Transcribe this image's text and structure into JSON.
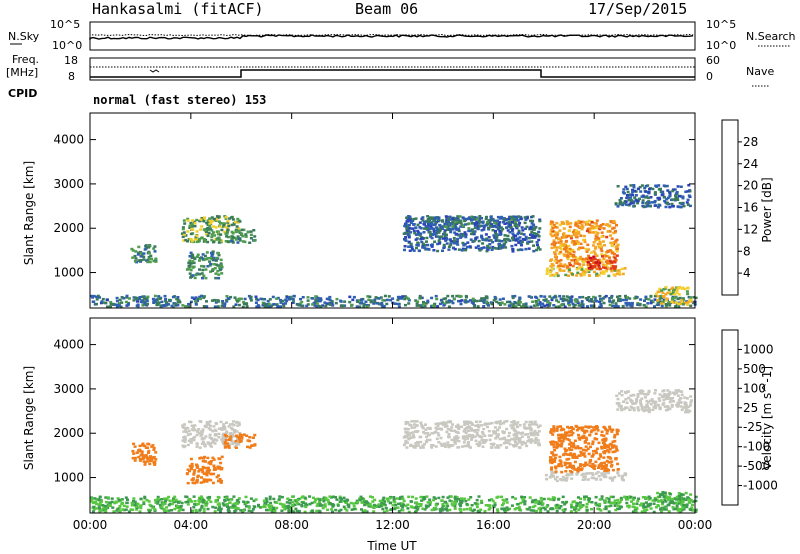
{
  "header": {
    "station": "Hankasalmi (fitACF)",
    "beam": "Beam 06",
    "date": "17/Sep/2015"
  },
  "top_panel": {
    "left_label": "N.Sky",
    "left_ticks": [
      "10^5",
      "10^0"
    ],
    "right_label": "N.Search",
    "right_ticks": [
      "10^5",
      "10^0"
    ]
  },
  "freq_panel": {
    "left_label_1": "Freq.",
    "left_label_2": "[MHz]",
    "left_ticks": [
      "18",
      "8"
    ],
    "right_label": "Nave",
    "right_ticks": [
      "60",
      "0"
    ],
    "cpid_label": "CPID"
  },
  "cpid_text": "normal (fast stereo) 153",
  "colors": {
    "power_scale": [
      "#1a1aff",
      "#2a44b8",
      "#2e5fb0",
      "#3a7a5a",
      "#4f9c4f",
      "#f2cf30",
      "#f5a623",
      "#ef7a1a",
      "#e23c1a",
      "#c8101a"
    ],
    "velocity_scale": [
      "#e01414",
      "#ee4a16",
      "#f07c1a",
      "#f5a623",
      "#c8c8c0",
      "#c8c8c0",
      "#58c840",
      "#3c9a50",
      "#3060a8",
      "#2030d0"
    ]
  },
  "chart_data": [
    {
      "type": "heatmap",
      "name": "power",
      "ylabel": "Slant Range [km]",
      "yticks": [
        "1000",
        "2000",
        "3000",
        "4000"
      ],
      "ylim": [
        200,
        4600
      ],
      "xlim_hours": [
        0,
        24
      ],
      "colorbar_label": "Power [dB]",
      "colorbar_ticks": [
        "4",
        "8",
        "12",
        "16",
        "20",
        "24",
        "28"
      ],
      "colorbar_range": [
        0,
        32
      ],
      "regions": [
        {
          "t0": 0.0,
          "t1": 24.0,
          "r0": 250,
          "r1": 500,
          "v": 10
        },
        {
          "t0": 1.6,
          "t1": 2.6,
          "r0": 1250,
          "r1": 1650,
          "v": 12
        },
        {
          "t0": 3.6,
          "t1": 5.9,
          "r0": 1700,
          "r1": 2300,
          "v": 14
        },
        {
          "t0": 3.8,
          "t1": 5.2,
          "r0": 900,
          "r1": 1500,
          "v": 12
        },
        {
          "t0": 5.3,
          "t1": 6.5,
          "r0": 1700,
          "r1": 2000,
          "v": 12
        },
        {
          "t0": 12.4,
          "t1": 17.8,
          "r0": 1500,
          "r1": 2300,
          "v": 8
        },
        {
          "t0": 13.2,
          "t1": 16.9,
          "r0": 2000,
          "r1": 2300,
          "v": 10
        },
        {
          "t0": 18.0,
          "t1": 21.2,
          "r0": 950,
          "r1": 1150,
          "v": 18
        },
        {
          "t0": 18.2,
          "t1": 20.9,
          "r0": 1100,
          "r1": 2200,
          "v": 22
        },
        {
          "t0": 19.6,
          "t1": 20.8,
          "r0": 1100,
          "r1": 1400,
          "v": 28
        },
        {
          "t0": 20.8,
          "t1": 23.8,
          "r0": 2500,
          "r1": 3000,
          "v": 8
        },
        {
          "t0": 22.4,
          "t1": 23.8,
          "r0": 300,
          "r1": 700,
          "v": 18
        }
      ]
    },
    {
      "type": "heatmap",
      "name": "velocity",
      "xlabel": "Time UT",
      "xticks": [
        "00:00",
        "04:00",
        "08:00",
        "12:00",
        "16:00",
        "20:00",
        "00:00"
      ],
      "xlim_hours": [
        0,
        24
      ],
      "ylabel": "Slant Range [km]",
      "yticks": [
        "1000",
        "2000",
        "3000",
        "4000"
      ],
      "ylim": [
        200,
        4600
      ],
      "colorbar_label": "Velocity [m s^-1]",
      "colorbar_ticks": [
        "-1000",
        "-500",
        "-100",
        "-25",
        "25",
        "100",
        "500",
        "1000"
      ],
      "regions": [
        {
          "t0": 0.0,
          "t1": 24.0,
          "r0": 250,
          "r1": 600,
          "v": 100
        },
        {
          "t0": 1.6,
          "t1": 2.6,
          "r0": 1300,
          "r1": 1800,
          "v": -300
        },
        {
          "t0": 3.6,
          "t1": 5.9,
          "r0": 1700,
          "r1": 2300,
          "v": 0
        },
        {
          "t0": 3.8,
          "t1": 5.2,
          "r0": 900,
          "r1": 1500,
          "v": -150
        },
        {
          "t0": 5.3,
          "t1": 6.5,
          "r0": 1700,
          "r1": 2000,
          "v": -300
        },
        {
          "t0": 12.4,
          "t1": 17.8,
          "r0": 1700,
          "r1": 2300,
          "v": 0
        },
        {
          "t0": 18.0,
          "t1": 21.2,
          "r0": 950,
          "r1": 1150,
          "v": 0
        },
        {
          "t0": 18.2,
          "t1": 20.9,
          "r0": 1150,
          "r1": 2200,
          "v": -300
        },
        {
          "t0": 20.8,
          "t1": 23.8,
          "r0": 2500,
          "r1": 3000,
          "v": 0
        },
        {
          "t0": 22.4,
          "t1": 23.8,
          "r0": 300,
          "r1": 700,
          "v": 100
        }
      ]
    }
  ]
}
